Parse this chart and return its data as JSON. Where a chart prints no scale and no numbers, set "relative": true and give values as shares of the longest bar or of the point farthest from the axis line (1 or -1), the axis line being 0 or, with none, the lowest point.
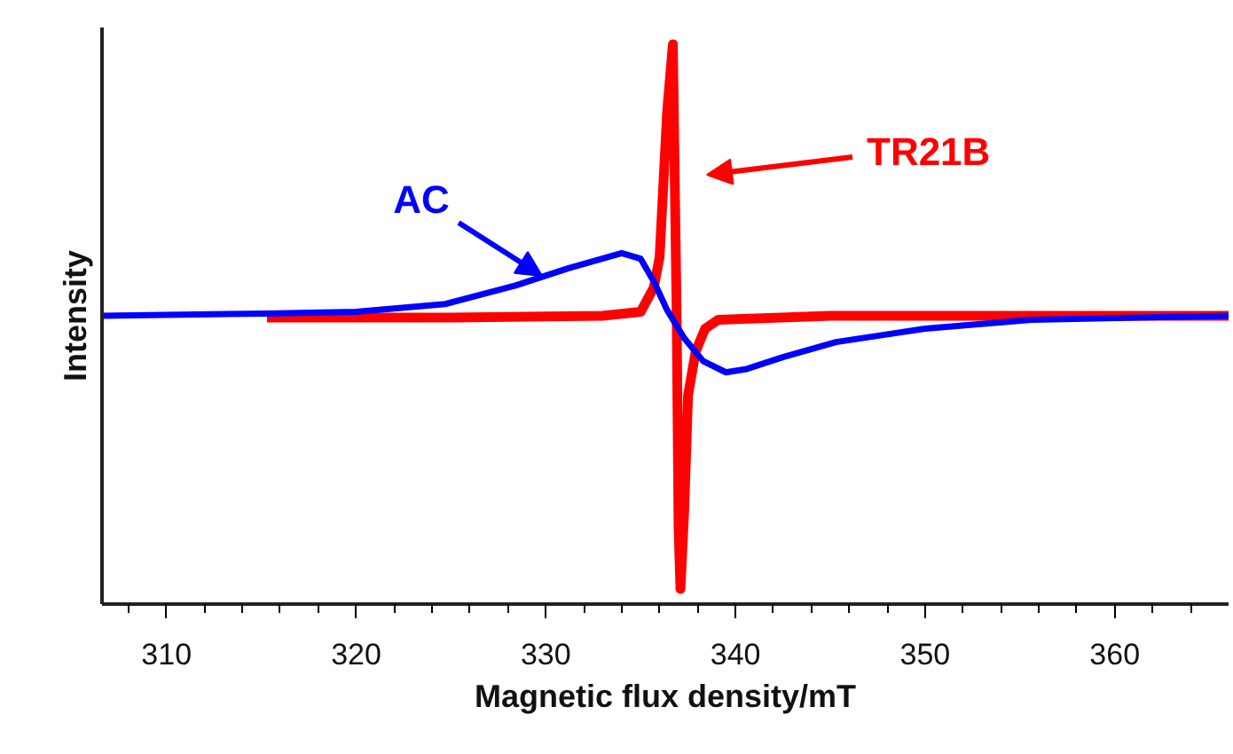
{
  "chart_data": {
    "type": "line",
    "xlabel": "Magnetic flux density/mT",
    "ylabel": "Intensity",
    "relative": true,
    "xlim": [
      306.6,
      366
    ],
    "xticks": [
      {
        "value": 308,
        "label": null
      },
      310,
      {
        "value": 312,
        "label": null
      },
      {
        "value": 314,
        "label": null
      },
      {
        "value": 316,
        "label": null
      },
      {
        "value": 318,
        "label": null
      },
      320,
      {
        "value": 322,
        "label": null
      },
      {
        "value": 324,
        "label": null
      },
      {
        "value": 326,
        "label": null
      },
      {
        "value": 328,
        "label": null
      },
      330,
      {
        "value": 332,
        "label": null
      },
      {
        "value": 334,
        "label": null
      },
      {
        "value": 336,
        "label": null
      },
      {
        "value": 338,
        "label": null
      },
      340,
      {
        "value": 342,
        "label": null
      },
      {
        "value": 344,
        "label": null
      },
      {
        "value": 346,
        "label": null
      },
      {
        "value": 348,
        "label": null
      },
      350,
      {
        "value": 352,
        "label": null
      },
      {
        "value": 354,
        "label": null
      },
      {
        "value": 356,
        "label": null
      },
      {
        "value": 358,
        "label": null
      },
      360,
      {
        "value": 362,
        "label": null
      },
      {
        "value": 364,
        "label": null
      }
    ],
    "grid": false,
    "series": [
      {
        "color": "#ff0000",
        "x": [
          315.3,
          325,
          333,
          335.0,
          335.7,
          336.0,
          336.4,
          336.7,
          336.9,
          337.0,
          337.1,
          337.3,
          337.5,
          337.9,
          338.4,
          339.1,
          345,
          366
        ],
        "values": [
          0.512,
          0.512,
          0.515,
          0.522,
          0.566,
          0.62,
          0.881,
          1.0,
          0.515,
          0.136,
          0.027,
          0.169,
          0.373,
          0.451,
          0.492,
          0.508,
          0.515,
          0.515
        ]
      },
      {
        "color": "#0000ff",
        "x": [
          306.6,
          315.3,
          320,
          324.7,
          328.4,
          331.2,
          334,
          335,
          335.7,
          336.4,
          337.3,
          338.3,
          339.5,
          340.6,
          342.5,
          345.3,
          350,
          355.6,
          366
        ],
        "values": [
          0.515,
          0.519,
          0.522,
          0.536,
          0.569,
          0.6,
          0.627,
          0.617,
          0.576,
          0.525,
          0.475,
          0.434,
          0.414,
          0.42,
          0.441,
          0.468,
          0.492,
          0.508,
          0.515
        ]
      }
    ],
    "annotations": [
      "AC",
      "TR21B"
    ]
  }
}
